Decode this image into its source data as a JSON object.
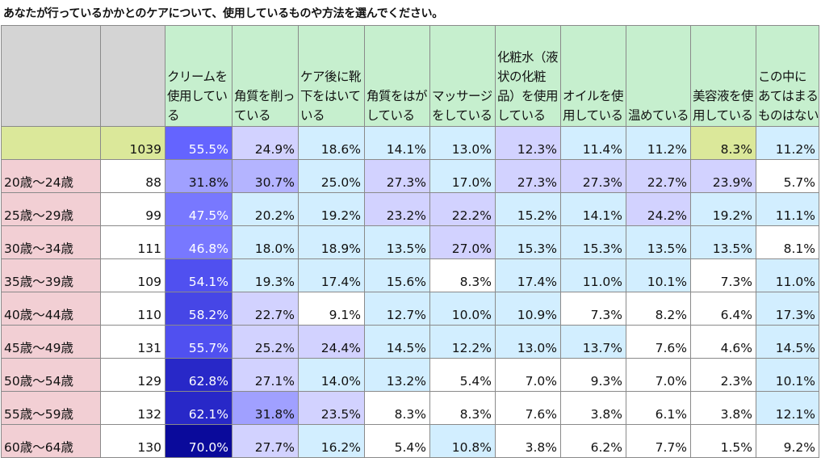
{
  "title": "あなたが行っているかかとのケアについて、使用しているものや方法を選んでください。",
  "chart_data": {
    "type": "table",
    "columns": [
      "",
      "",
      "クリームを使用している",
      "角質を削っている",
      "ケア後に靴下をはいている",
      "角質をはがしている",
      "マッサージをしている",
      "化粧水（液状の化粧品）を使用している",
      "オイルを使用している",
      "温めている",
      "美容液を使用している",
      "この中にあてはまるものはない"
    ],
    "rows": [
      {
        "segment": "",
        "n": "1039",
        "values": [
          "55.5%",
          "24.9%",
          "18.6%",
          "14.1%",
          "13.0%",
          "12.3%",
          "11.4%",
          "11.2%",
          "8.3%",
          "11.2%"
        ],
        "colors": [
          "#6464ff",
          "#d2d2ff",
          "#d2eeff",
          "#d2eeff",
          "#d2eeff",
          "#d2d2ff",
          "#d2eeff",
          "#d2eeff",
          "#dbe89a",
          "#d2eeff"
        ]
      },
      {
        "segment": "20歳～24歳",
        "n": "88",
        "values": [
          "31.8%",
          "30.7%",
          "25.0%",
          "27.3%",
          "17.0%",
          "27.3%",
          "27.3%",
          "22.7%",
          "23.9%",
          "5.7%"
        ],
        "colors": [
          "#a0a0ff",
          "#b4b4ff",
          "#d2eeff",
          "#d2d2ff",
          "#d2eeff",
          "#d2d2ff",
          "#d2d2ff",
          "#d2d2ff",
          "#d2d2ff",
          "#ffffff"
        ]
      },
      {
        "segment": "25歳～29歳",
        "n": "99",
        "values": [
          "47.5%",
          "20.2%",
          "19.2%",
          "23.2%",
          "22.2%",
          "15.2%",
          "14.1%",
          "24.2%",
          "19.2%",
          "11.1%"
        ],
        "colors": [
          "#7878ff",
          "#d2eeff",
          "#d2eeff",
          "#d2d2ff",
          "#d2d2ff",
          "#d2eeff",
          "#d2eeff",
          "#d2d2ff",
          "#d2eeff",
          "#d2eeff"
        ]
      },
      {
        "segment": "30歳～34歳",
        "n": "111",
        "values": [
          "46.8%",
          "18.0%",
          "18.9%",
          "13.5%",
          "27.0%",
          "15.3%",
          "15.3%",
          "13.5%",
          "13.5%",
          "8.1%"
        ],
        "colors": [
          "#7878ff",
          "#d2eeff",
          "#d2eeff",
          "#d2eeff",
          "#d2d2ff",
          "#d2eeff",
          "#d2eeff",
          "#d2eeff",
          "#d2eeff",
          "#ffffff"
        ]
      },
      {
        "segment": "35歳～39歳",
        "n": "109",
        "values": [
          "54.1%",
          "19.3%",
          "17.4%",
          "15.6%",
          "8.3%",
          "17.4%",
          "11.0%",
          "10.1%",
          "7.3%",
          "11.0%"
        ],
        "colors": [
          "#5050f0",
          "#d2eeff",
          "#d2eeff",
          "#d2eeff",
          "#ffffff",
          "#d2eeff",
          "#d2eeff",
          "#d2eeff",
          "#ffffff",
          "#d2eeff"
        ]
      },
      {
        "segment": "40歳～44歳",
        "n": "110",
        "values": [
          "58.2%",
          "22.7%",
          "9.1%",
          "12.7%",
          "10.0%",
          "10.9%",
          "7.3%",
          "8.2%",
          "6.4%",
          "17.3%"
        ],
        "colors": [
          "#4646e6",
          "#d2d2ff",
          "#ffffff",
          "#d2eeff",
          "#d2eeff",
          "#d2eeff",
          "#ffffff",
          "#ffffff",
          "#ffffff",
          "#d2eeff"
        ]
      },
      {
        "segment": "45歳～49歳",
        "n": "131",
        "values": [
          "55.7%",
          "25.2%",
          "24.4%",
          "14.5%",
          "12.2%",
          "13.0%",
          "13.7%",
          "7.6%",
          "4.6%",
          "14.5%"
        ],
        "colors": [
          "#5050f0",
          "#d2d2ff",
          "#d2d2ff",
          "#d2eeff",
          "#d2eeff",
          "#d2eeff",
          "#d2eeff",
          "#ffffff",
          "#ffffff",
          "#d2eeff"
        ]
      },
      {
        "segment": "50歳～54歳",
        "n": "129",
        "values": [
          "62.8%",
          "27.1%",
          "14.0%",
          "13.2%",
          "5.4%",
          "7.0%",
          "9.3%",
          "7.0%",
          "2.3%",
          "10.1%"
        ],
        "colors": [
          "#2828c8",
          "#d2d2ff",
          "#d2eeff",
          "#d2eeff",
          "#ffffff",
          "#ffffff",
          "#ffffff",
          "#ffffff",
          "#ffffff",
          "#d2eeff"
        ]
      },
      {
        "segment": "55歳～59歳",
        "n": "132",
        "values": [
          "62.1%",
          "31.8%",
          "23.5%",
          "8.3%",
          "8.3%",
          "7.6%",
          "3.8%",
          "6.1%",
          "3.8%",
          "12.1%"
        ],
        "colors": [
          "#2828c8",
          "#a0a0ff",
          "#d2d2ff",
          "#ffffff",
          "#ffffff",
          "#ffffff",
          "#ffffff",
          "#ffffff",
          "#ffffff",
          "#d2eeff"
        ]
      },
      {
        "segment": "60歳～64歳",
        "n": "130",
        "values": [
          "70.0%",
          "27.7%",
          "16.2%",
          "5.4%",
          "10.8%",
          "3.8%",
          "6.2%",
          "7.7%",
          "1.5%",
          "9.2%"
        ],
        "colors": [
          "#0a0a9b",
          "#d2d2ff",
          "#d2eeff",
          "#ffffff",
          "#d2eeff",
          "#ffffff",
          "#ffffff",
          "#ffffff",
          "#ffffff",
          "#ffffff"
        ]
      }
    ],
    "header_colors": [
      "#d4d4d4",
      "#d4d4d4",
      "#c6efce",
      "#c6efce",
      "#c6efce",
      "#c6efce",
      "#c6efce",
      "#c6efce",
      "#c6efce",
      "#c6efce",
      "#c6efce",
      "#c6efce"
    ]
  }
}
